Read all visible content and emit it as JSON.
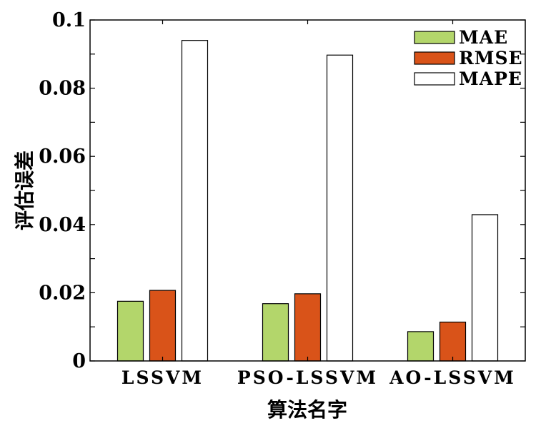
{
  "chart_data": {
    "type": "bar",
    "title": "",
    "xlabel": "算法名字",
    "ylabel": "评估误差",
    "categories": [
      "LSSVM",
      "PSO-LSSVM",
      "AO-LSSVM"
    ],
    "series": [
      {
        "name": "MAE",
        "values": [
          0.0175,
          0.0168,
          0.0086
        ],
        "color": "#b3d66b"
      },
      {
        "name": "RMSE",
        "values": [
          0.0207,
          0.0197,
          0.0114
        ],
        "color": "#d95319"
      },
      {
        "name": "MAPE",
        "values": [
          0.094,
          0.0897,
          0.0429
        ],
        "color": "#ffffff"
      }
    ],
    "ylim": [
      0,
      0.1
    ],
    "yticks": [
      "0",
      "0.02",
      "0.04",
      "0.06",
      "0.08",
      "0.1"
    ],
    "grid": false,
    "legend_position": "top-right"
  }
}
